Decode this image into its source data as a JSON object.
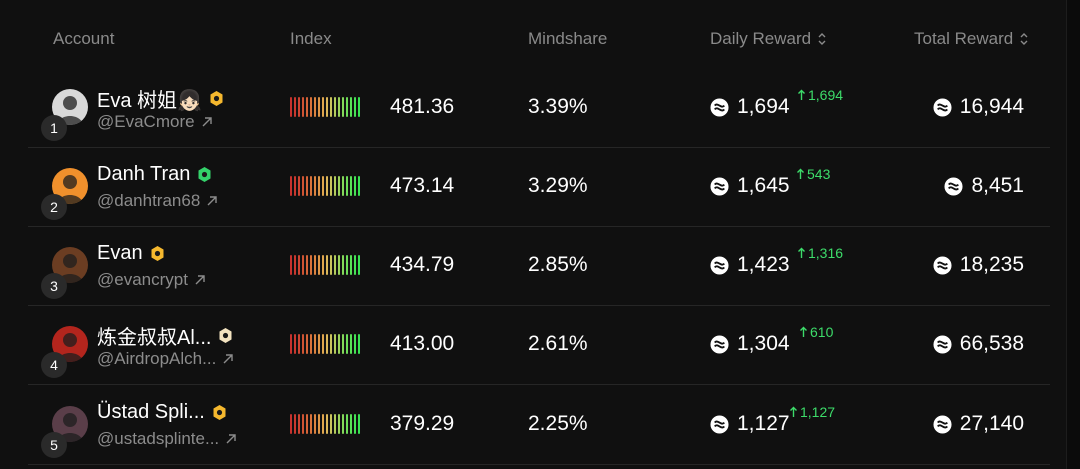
{
  "columns": {
    "account": "Account",
    "index": "Index",
    "mindshare": "Mindshare",
    "daily_reward": "Daily Reward",
    "total_reward": "Total Reward"
  },
  "rows": [
    {
      "rank": "1",
      "name": "Eva 树姐👧🏻",
      "handle": "@EvaCmore",
      "index": "481.36",
      "mindshare": "3.39%",
      "daily": "1,694",
      "delta": "1,694",
      "total": "16,944",
      "badge_color": "#f5b82e",
      "avatar_color": "#d9d9d9"
    },
    {
      "rank": "2",
      "name": "Danh Tran",
      "handle": "@danhtran68",
      "index": "473.14",
      "mindshare": "3.29%",
      "daily": "1,645",
      "delta": "543",
      "total": "8,451",
      "badge_color": "#34d26a",
      "avatar_color": "#f0902c"
    },
    {
      "rank": "3",
      "name": "Evan",
      "handle": "@evancrypt",
      "index": "434.79",
      "mindshare": "2.85%",
      "daily": "1,423",
      "delta": "1,316",
      "total": "18,235",
      "badge_color": "#f5b82e",
      "avatar_color": "#6b3d22"
    },
    {
      "rank": "4",
      "name": "炼金叔叔Al...",
      "handle": "@AirdropAlch...",
      "index": "413.00",
      "mindshare": "2.61%",
      "daily": "1,304",
      "delta": "610",
      "total": "66,538",
      "badge_color": "#f3e3c0",
      "avatar_color": "#b3251d"
    },
    {
      "rank": "5",
      "name": "Üstad Spli...",
      "handle": "@ustadsplinte...",
      "index": "379.29",
      "mindshare": "2.25%",
      "daily": "1,127",
      "delta": "1,127",
      "total": "27,140",
      "badge_color": "#f5b82e",
      "avatar_color": "#5a3e49"
    }
  ],
  "bar_colors": [
    "#c7322d",
    "#c9392f",
    "#cd4532",
    "#d05433",
    "#d56337",
    "#d9723a",
    "#dc8340",
    "#de9547",
    "#e0a64e",
    "#dcb759",
    "#c9c45c",
    "#b2cc5c",
    "#9bd35b",
    "#84d95a",
    "#6ddd58",
    "#58e157",
    "#46e254",
    "#39e352"
  ]
}
